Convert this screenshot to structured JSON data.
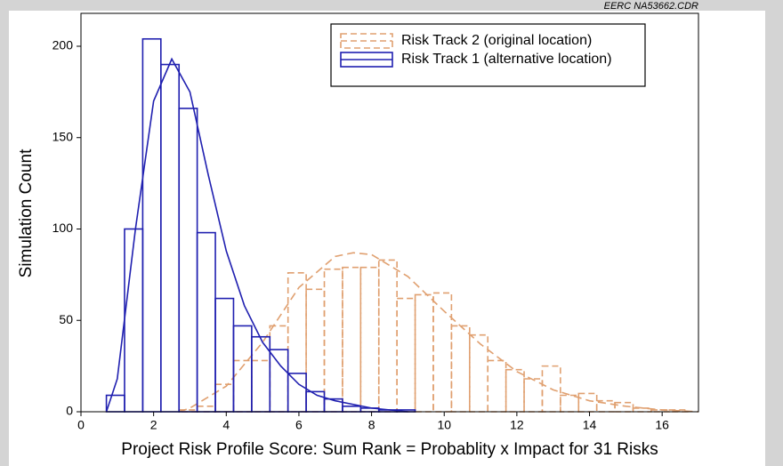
{
  "chart_data": {
    "type": "histogram",
    "source_note": "EERC NA53662.CDR",
    "xlabel": "Project Risk Profile Score: Sum Rank = Probablity x Impact for 31 Risks",
    "ylabel": "Simulation Count",
    "xlim": [
      0,
      17
    ],
    "ylim": [
      0,
      218
    ],
    "xticks": [
      0,
      2,
      4,
      6,
      8,
      10,
      12,
      14,
      16
    ],
    "yticks": [
      0,
      50,
      100,
      150,
      200
    ],
    "legend": "upper right",
    "series": [
      {
        "name": "Risk Track 2 (original location)",
        "color": "#e0a070",
        "dashed": true,
        "bins": [
          2.7,
          3.2,
          3.7,
          4.2,
          4.7,
          5.2,
          5.7,
          6.2,
          6.7,
          7.2,
          7.7,
          8.2,
          8.7,
          9.2,
          9.7,
          10.2,
          10.7,
          11.2,
          11.7,
          12.2,
          12.7,
          13.2,
          13.7,
          14.2,
          14.7,
          15.2,
          15.7,
          16.2,
          16.7
        ],
        "values": [
          1,
          3,
          15,
          28,
          28,
          47,
          76,
          67,
          78,
          79,
          79,
          83,
          62,
          64,
          65,
          47,
          42,
          28,
          23,
          18,
          25,
          9,
          10,
          6,
          5,
          2,
          1,
          1
        ],
        "curve": {
          "x": [
            2.7,
            3,
            4,
            5,
            6,
            7,
            7.5,
            8,
            9,
            10,
            11,
            12,
            13,
            14,
            15,
            16,
            17
          ],
          "values": [
            0,
            2,
            14,
            38,
            68,
            85,
            87,
            86,
            74,
            55,
            37,
            22,
            12,
            6,
            3,
            1,
            0
          ]
        }
      },
      {
        "name": "Risk Track 1 (alternative location)",
        "color": "#2020b0",
        "dashed": false,
        "bins": [
          0.7,
          1.2,
          1.7,
          2.2,
          2.7,
          3.2,
          3.7,
          4.2,
          4.7,
          5.2,
          5.7,
          6.2,
          6.7,
          7.2,
          7.7,
          8.2,
          8.7,
          9.2
        ],
        "values": [
          9,
          100,
          204,
          190,
          166,
          98,
          62,
          47,
          41,
          34,
          21,
          11,
          7,
          3,
          2,
          1,
          1
        ],
        "curve": {
          "x": [
            0.7,
            1,
            1.5,
            2,
            2.5,
            3,
            3.5,
            4,
            4.5,
            5,
            5.5,
            6,
            6.5,
            7,
            8,
            9
          ],
          "values": [
            0,
            18,
            100,
            170,
            193,
            175,
            130,
            88,
            58,
            38,
            25,
            15,
            9,
            6,
            2,
            0
          ]
        }
      }
    ]
  }
}
